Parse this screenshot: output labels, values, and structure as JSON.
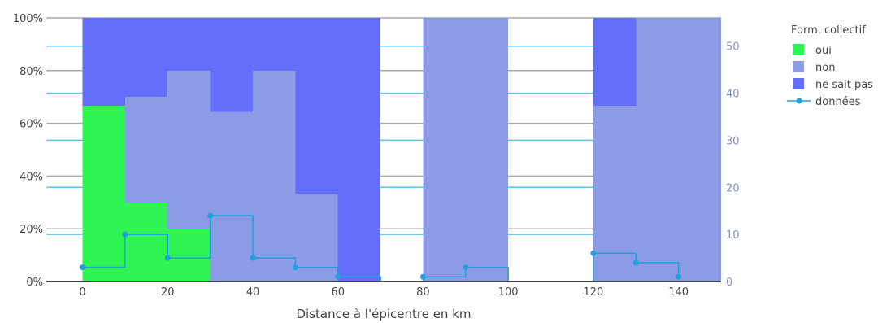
{
  "chart_data": {
    "type": "bar",
    "xlabel": "Distance à l'épicentre en km",
    "x_range": [
      -8.5,
      150
    ],
    "x_ticks": [
      0,
      20,
      40,
      60,
      80,
      100,
      120,
      140
    ],
    "y_left_range": [
      0,
      100
    ],
    "y_left_ticks": [
      0,
      20,
      40,
      60,
      80,
      100
    ],
    "y_left_tick_labels": [
      "0%",
      "20%",
      "40%",
      "60%",
      "80%",
      "100%"
    ],
    "y_right_range": [
      0,
      56
    ],
    "y_right_ticks": [
      0,
      10,
      20,
      30,
      40,
      50
    ],
    "bin_width": 10,
    "bins": [
      0,
      10,
      20,
      30,
      40,
      50,
      60,
      70,
      80,
      90,
      100,
      110,
      120,
      130,
      140
    ],
    "series": [
      {
        "name": "oui",
        "color": "#2ef553",
        "values": [
          66.7,
          30,
          20,
          0,
          0,
          0,
          0,
          0,
          0,
          0,
          0,
          0,
          0,
          0,
          0
        ]
      },
      {
        "name": "non",
        "color": "#8b9be5",
        "values": [
          0,
          40,
          60,
          64.3,
          80,
          33.3,
          0,
          0,
          100,
          100,
          0,
          0,
          66.7,
          100,
          100
        ]
      },
      {
        "name": "ne sait pas",
        "color": "#636efa",
        "values": [
          33.3,
          30,
          20,
          35.7,
          20,
          66.7,
          100,
          0,
          0,
          0,
          0,
          0,
          33.3,
          0,
          0
        ]
      }
    ],
    "line_series": {
      "name": "données",
      "color": "#1fa1dc",
      "axis": "right",
      "x": [
        0,
        10,
        20,
        30,
        40,
        50,
        60,
        70,
        80,
        90,
        100,
        110,
        120,
        130,
        140
      ],
      "y": [
        3,
        10,
        5,
        14,
        5,
        3,
        1,
        0,
        1,
        3,
        0,
        0,
        6,
        4,
        1
      ]
    },
    "legend": {
      "title": "Form. collectif",
      "position": "top-right"
    }
  }
}
